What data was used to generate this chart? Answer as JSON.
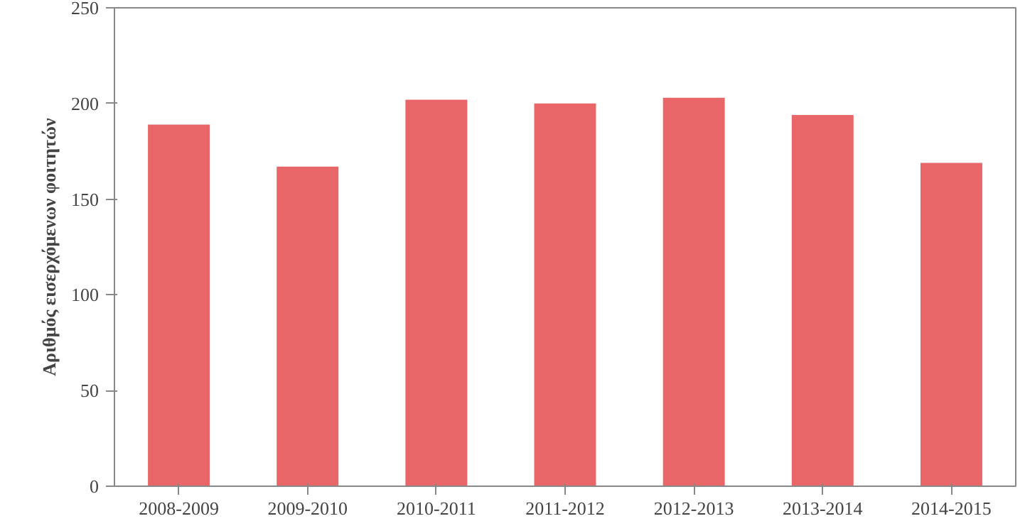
{
  "chart_data": {
    "type": "bar",
    "ylabel": "Αριθμός εισερχόμενων φοιτητών",
    "categories": [
      "2008-2009",
      "2009-2010",
      "2010-2011",
      "2011-2012",
      "2012-2013",
      "2013-2014",
      "2014-2015"
    ],
    "values": [
      189,
      167,
      202,
      200,
      203,
      194,
      169
    ],
    "color": "#e86668",
    "ylim": [
      0,
      250
    ],
    "yticks": [
      0,
      50,
      100,
      150,
      200,
      250
    ],
    "grid": false
  }
}
